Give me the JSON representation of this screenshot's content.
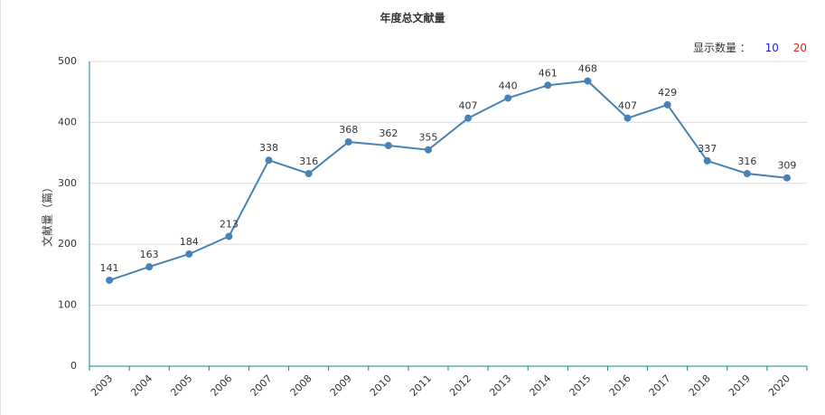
{
  "chart_data": {
    "type": "line",
    "title": "年度总文献量",
    "ylabel": "文献量（篇）",
    "xlabel": "",
    "categories": [
      "2003",
      "2004",
      "2005",
      "2006",
      "2007",
      "2008",
      "2009",
      "2010",
      "2011",
      "2012",
      "2013",
      "2014",
      "2015",
      "2016",
      "2017",
      "2018",
      "2019",
      "2020"
    ],
    "series": [
      {
        "values": [
          141,
          163,
          184,
          213,
          338,
          316,
          368,
          362,
          355,
          407,
          440,
          461,
          468,
          407,
          429,
          337,
          316,
          309
        ]
      }
    ],
    "ylim": [
      0,
      500
    ],
    "yticks": [
      "0",
      "100",
      "200",
      "300",
      "400",
      "500"
    ],
    "grid": true,
    "colors": {
      "line": "#4682b4",
      "axis": "#0b8a8a",
      "grid": "#dddddd"
    }
  },
  "display_count": {
    "label": "显示数量 ：",
    "options": [
      "10",
      "20"
    ]
  }
}
